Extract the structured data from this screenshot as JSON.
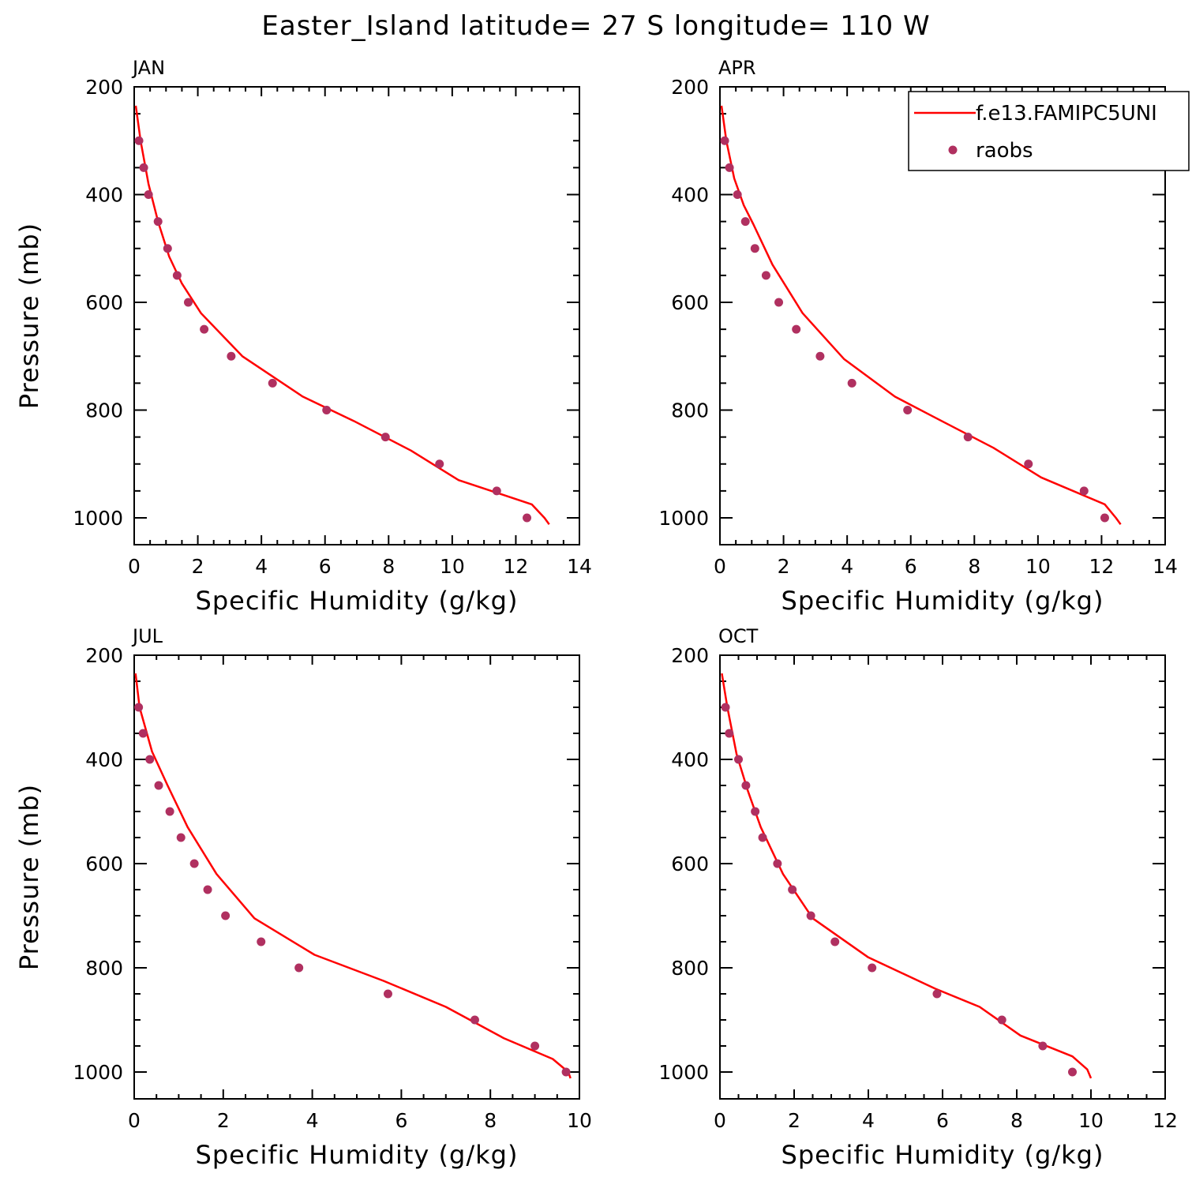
{
  "title": "Easter_Island  latitude= 27 S longitude= 110 W",
  "colors": {
    "model": "#ff0000",
    "obs": "#b03060",
    "axes": "#000000"
  },
  "chart_data": [
    {
      "type": "line",
      "panel": "JAN",
      "xlabel": "Specific Humidity (g/kg)",
      "ylabel": "Pressure (mb)",
      "xlim": [
        0,
        14
      ],
      "ylim": [
        1020,
        200
      ],
      "x_ticks": [
        0,
        2,
        4,
        6,
        8,
        10,
        12,
        14
      ],
      "y_ticks": [
        200,
        400,
        600,
        800,
        1000
      ],
      "series": [
        {
          "name": "f.e13.FAMIPC5UNI",
          "kind": "line",
          "x": [
            0.05,
            0.2,
            0.45,
            0.75,
            1.1,
            1.5,
            2.1,
            3.4,
            5.3,
            6.9,
            8.7,
            10.2,
            12.5,
            12.9,
            13.05
          ],
          "y": [
            235,
            300,
            380,
            450,
            515,
            565,
            620,
            700,
            775,
            820,
            875,
            930,
            975,
            1000,
            1012
          ]
        },
        {
          "name": "raobs",
          "kind": "scatter",
          "x": [
            0.15,
            0.3,
            0.45,
            0.75,
            1.05,
            1.35,
            1.7,
            2.2,
            3.05,
            4.35,
            6.05,
            7.9,
            9.6,
            11.4,
            12.35
          ],
          "y": [
            300,
            350,
            400,
            450,
            500,
            550,
            600,
            650,
            700,
            750,
            800,
            850,
            900,
            950,
            1000
          ]
        }
      ]
    },
    {
      "type": "line",
      "panel": "APR",
      "xlabel": "Specific Humidity (g/kg)",
      "ylabel": "Pressure (mb)",
      "xlim": [
        0,
        14
      ],
      "ylim": [
        1020,
        200
      ],
      "x_ticks": [
        0,
        2,
        4,
        6,
        8,
        10,
        12,
        14
      ],
      "y_ticks": [
        200,
        400,
        600,
        800,
        1000
      ],
      "legend": {
        "placement": "top-right"
      },
      "series": [
        {
          "name": "f.e13.FAMIPC5UNI",
          "kind": "line",
          "x": [
            0.05,
            0.2,
            0.45,
            0.75,
            1.05,
            1.65,
            2.6,
            3.9,
            5.5,
            6.8,
            8.6,
            10.1,
            12.1,
            12.45,
            12.6
          ],
          "y": [
            235,
            300,
            370,
            420,
            455,
            530,
            620,
            705,
            775,
            815,
            870,
            925,
            975,
            1000,
            1012
          ]
        },
        {
          "name": "raobs",
          "kind": "scatter",
          "x": [
            0.15,
            0.3,
            0.55,
            0.8,
            1.1,
            1.45,
            1.85,
            2.4,
            3.15,
            4.15,
            5.9,
            7.8,
            9.7,
            11.45,
            12.1
          ],
          "y": [
            300,
            350,
            400,
            450,
            500,
            550,
            600,
            650,
            700,
            750,
            800,
            850,
            900,
            950,
            1000
          ]
        }
      ]
    },
    {
      "type": "line",
      "panel": "JUL",
      "xlabel": "Specific Humidity (g/kg)",
      "ylabel": "Pressure (mb)",
      "xlim": [
        0,
        10
      ],
      "ylim": [
        1020,
        200
      ],
      "x_ticks": [
        0,
        2,
        4,
        6,
        8,
        10
      ],
      "y_ticks": [
        200,
        400,
        600,
        800,
        1000
      ],
      "series": [
        {
          "name": "f.e13.FAMIPC5UNI",
          "kind": "line",
          "x": [
            0.03,
            0.12,
            0.4,
            0.75,
            1.2,
            1.85,
            2.7,
            4.05,
            5.6,
            7.0,
            8.3,
            9.4,
            9.75,
            9.8
          ],
          "y": [
            235,
            300,
            385,
            450,
            530,
            620,
            705,
            775,
            825,
            875,
            935,
            975,
            1000,
            1012
          ]
        },
        {
          "name": "raobs",
          "kind": "scatter",
          "x": [
            0.1,
            0.2,
            0.35,
            0.55,
            0.8,
            1.05,
            1.35,
            1.65,
            2.05,
            2.85,
            3.7,
            5.7,
            7.65,
            9.0,
            9.7
          ],
          "y": [
            300,
            350,
            400,
            450,
            500,
            550,
            600,
            650,
            700,
            750,
            800,
            850,
            900,
            950,
            1000
          ]
        }
      ]
    },
    {
      "type": "line",
      "panel": "OCT",
      "xlabel": "Specific Humidity (g/kg)",
      "ylabel": "Pressure (mb)",
      "xlim": [
        0,
        12
      ],
      "ylim": [
        1020,
        200
      ],
      "x_ticks": [
        0,
        2,
        4,
        6,
        8,
        10,
        12
      ],
      "y_ticks": [
        200,
        400,
        600,
        800,
        1000
      ],
      "series": [
        {
          "name": "f.e13.FAMIPC5UNI",
          "kind": "line",
          "x": [
            0.05,
            0.2,
            0.45,
            0.75,
            1.1,
            1.7,
            2.5,
            4.0,
            5.8,
            7.0,
            8.1,
            9.5,
            9.9,
            10.0
          ],
          "y": [
            235,
            300,
            390,
            460,
            530,
            620,
            705,
            780,
            840,
            875,
            930,
            970,
            995,
            1012
          ]
        },
        {
          "name": "raobs",
          "kind": "scatter",
          "x": [
            0.15,
            0.25,
            0.5,
            0.7,
            0.95,
            1.15,
            1.55,
            1.95,
            2.45,
            3.1,
            4.1,
            5.85,
            7.6,
            8.7,
            9.5
          ],
          "y": [
            300,
            350,
            400,
            450,
            500,
            550,
            600,
            650,
            700,
            750,
            800,
            850,
            900,
            950,
            1000
          ]
        }
      ]
    }
  ]
}
